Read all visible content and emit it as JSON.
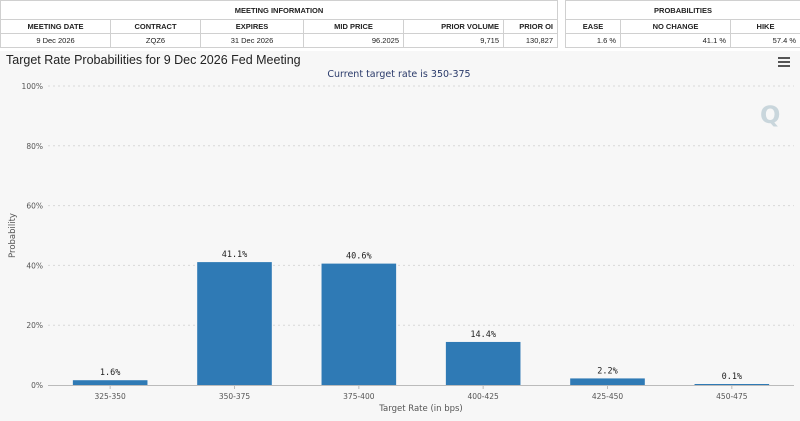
{
  "meeting_info": {
    "header": "MEETING INFORMATION",
    "columns": [
      "MEETING DATE",
      "CONTRACT",
      "EXPIRES",
      "MID PRICE",
      "PRIOR VOLUME",
      "PRIOR OI"
    ],
    "row": [
      "9 Dec 2026",
      "ZQZ6",
      "31 Dec 2026",
      "96.2025",
      "9,715",
      "130,827"
    ]
  },
  "probabilities": {
    "header": "PROBABILITIES",
    "columns": [
      "EASE",
      "NO CHANGE",
      "HIKE"
    ],
    "row": [
      "1.6 %",
      "41.1 %",
      "57.4 %"
    ]
  },
  "chart": {
    "menu_icon": "hamburger-menu-icon",
    "watermark": "Q",
    "bar_color": "#2f7ab5"
  },
  "chart_data": {
    "type": "bar",
    "title": "Target Rate Probabilities for 9 Dec 2026 Fed Meeting",
    "subtitle": "Current target rate is 350-375",
    "xlabel": "Target Rate (in bps)",
    "ylabel": "Probability",
    "categories": [
      "325-350",
      "350-375",
      "375-400",
      "400-425",
      "425-450",
      "450-475"
    ],
    "values": [
      1.6,
      41.1,
      40.6,
      14.4,
      2.2,
      0.1
    ],
    "data_labels": [
      "1.6%",
      "41.1%",
      "40.6%",
      "14.4%",
      "2.2%",
      "0.1%"
    ],
    "ylim": [
      0,
      100
    ],
    "yticks": [
      0,
      20,
      40,
      60,
      80,
      100
    ],
    "ytick_labels": [
      "0%",
      "20%",
      "40%",
      "60%",
      "80%",
      "100%"
    ],
    "grid": true,
    "legend": "none"
  }
}
